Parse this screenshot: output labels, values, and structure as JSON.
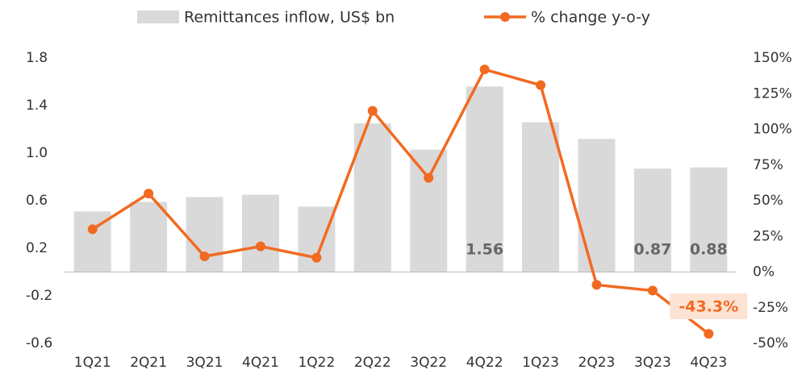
{
  "chart_data": {
    "type": "bar_line",
    "categories": [
      "1Q21",
      "2Q21",
      "3Q21",
      "4Q21",
      "1Q22",
      "2Q22",
      "3Q22",
      "4Q22",
      "1Q23",
      "2Q23",
      "3Q23",
      "4Q23"
    ],
    "series": [
      {
        "name": "Remittances inflow, US$ bn",
        "type": "bar",
        "color": "#d9d9d9",
        "values": [
          0.51,
          0.59,
          0.63,
          0.65,
          0.55,
          1.25,
          1.03,
          1.56,
          1.26,
          1.12,
          0.87,
          0.88
        ],
        "value_labels": [
          null,
          null,
          null,
          null,
          null,
          null,
          null,
          "1.56",
          null,
          null,
          "0.87",
          "0.88"
        ]
      },
      {
        "name": "% change y-o-y",
        "type": "line",
        "axis": "y2",
        "color": "#f26a21",
        "values": [
          30,
          55,
          11,
          18,
          10,
          113,
          66,
          142,
          131,
          -9,
          -13,
          -43.3
        ],
        "value_labels": [
          null,
          null,
          null,
          null,
          null,
          null,
          null,
          null,
          null,
          null,
          null,
          "-43.3%"
        ]
      }
    ],
    "ylim": [
      -0.6,
      1.8
    ],
    "yticks": [
      -0.6,
      -0.2,
      0.2,
      0.6,
      {
        "value": 1,
        "label": "1.0"
      },
      1.4,
      1.8
    ],
    "y2lim": [
      -50,
      150
    ],
    "y2ticks": [
      {
        "value": -50,
        "label": "-50%"
      },
      {
        "value": -25,
        "label": "-25%"
      },
      {
        "value": 0,
        "label": "0%"
      },
      {
        "value": 25,
        "label": "25%"
      },
      {
        "value": 50,
        "label": "50%"
      },
      {
        "value": 75,
        "label": "75%"
      },
      {
        "value": 100,
        "label": "100%"
      },
      {
        "value": 125,
        "label": "125%"
      },
      {
        "value": 150,
        "label": "150%"
      }
    ],
    "legend": "top"
  }
}
